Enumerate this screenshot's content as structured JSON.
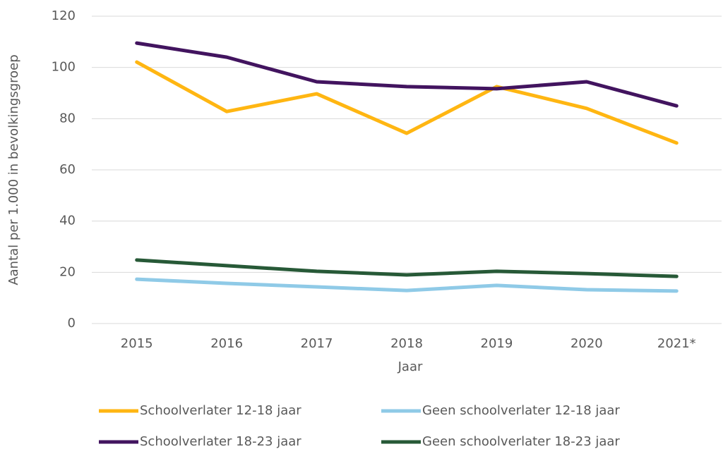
{
  "chart_data": {
    "type": "line",
    "y_label": "Aantal per 1.000 in bevolkingsgroep",
    "x_label": "Jaar",
    "categories": [
      "2015",
      "2016",
      "2017",
      "2018",
      "2019",
      "2020",
      "2021*"
    ],
    "series": [
      {
        "name": "Schoolverlater 12-18 jaar",
        "color": "#ffb612",
        "values": [
          102.1,
          82.8,
          89.7,
          74.3,
          92.5,
          84,
          70.5
        ]
      },
      {
        "name": "Geen schoolverlater 12-18 jaar",
        "color": "#8fcae7",
        "values": [
          17.3,
          15.7,
          14.3,
          12.9,
          14.9,
          13.2,
          12.7
        ]
      },
      {
        "name": "Schoolverlater 18-23 jaar",
        "color": "#42145f",
        "values": [
          109.5,
          104,
          94.4,
          92.5,
          91.7,
          94.4,
          85
        ]
      },
      {
        "name": "Geen schoolverlater 18-23 jaar",
        "color": "#275937",
        "values": [
          24.8,
          22.6,
          20.4,
          19,
          20.4,
          19.5,
          18.4
        ]
      }
    ],
    "ylim": [
      0,
      120
    ],
    "yticks": [
      0,
      20,
      40,
      60,
      80,
      100,
      120
    ],
    "grid": true
  }
}
